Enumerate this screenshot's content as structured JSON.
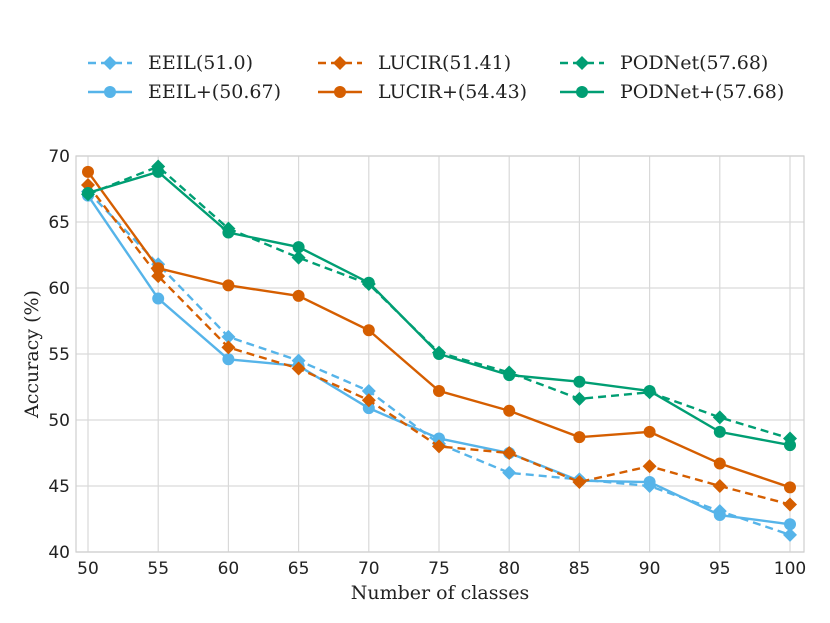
{
  "chart_data": {
    "type": "line",
    "title": "",
    "xlabel": "Number of classes",
    "ylabel": "Accuracy (%)",
    "xlim": [
      50,
      100
    ],
    "ylim": [
      40,
      70
    ],
    "x": [
      50,
      55,
      60,
      65,
      70,
      75,
      80,
      85,
      90,
      95,
      100
    ],
    "xticks": [
      "50",
      "55",
      "60",
      "65",
      "70",
      "75",
      "80",
      "85",
      "90",
      "95",
      "100"
    ],
    "yticks": [
      "40",
      "45",
      "50",
      "55",
      "60",
      "65",
      "70"
    ],
    "grid": true,
    "legend_position": "top",
    "series": [
      {
        "name": "EEIL(51.0)",
        "color": "#56b4e9",
        "line": "dashed",
        "marker": "diamond",
        "values": [
          67.3,
          61.8,
          56.3,
          54.5,
          52.2,
          48.2,
          46.0,
          45.5,
          45.0,
          43.1,
          41.3
        ]
      },
      {
        "name": "EEIL+(50.67)",
        "color": "#56b4e9",
        "line": "solid",
        "marker": "circle",
        "values": [
          67.0,
          59.2,
          54.6,
          54.1,
          50.9,
          48.6,
          47.5,
          45.4,
          45.3,
          42.8,
          42.1
        ]
      },
      {
        "name": "LUCIR(51.41)",
        "color": "#d55e00",
        "line": "dashed",
        "marker": "diamond",
        "values": [
          67.8,
          60.9,
          55.5,
          53.9,
          51.5,
          48.0,
          47.5,
          45.3,
          46.5,
          45.0,
          43.6
        ]
      },
      {
        "name": "LUCIR+(54.43)",
        "color": "#d55e00",
        "line": "solid",
        "marker": "circle",
        "values": [
          68.8,
          61.5,
          60.2,
          59.4,
          56.8,
          52.2,
          50.7,
          48.7,
          49.1,
          46.7,
          44.9
        ]
      },
      {
        "name": "PODNet(57.68)",
        "color": "#009e73",
        "line": "dashed",
        "marker": "diamond",
        "values": [
          67.1,
          69.2,
          64.5,
          62.3,
          60.3,
          55.1,
          53.6,
          51.6,
          52.1,
          50.2,
          48.6
        ]
      },
      {
        "name": "PODNet+(57.68)",
        "color": "#009e73",
        "line": "solid",
        "marker": "circle",
        "values": [
          67.2,
          68.8,
          64.2,
          63.1,
          60.4,
          55.0,
          53.4,
          52.9,
          52.2,
          49.1,
          48.1
        ]
      }
    ]
  }
}
